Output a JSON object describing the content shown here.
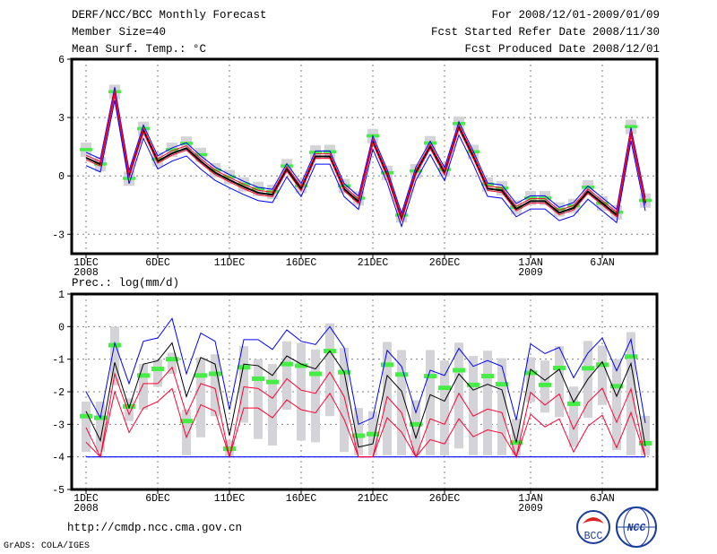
{
  "header": {
    "title": "DERF/NCC/BCC Monthly Forecast",
    "member": "Member Size=40",
    "variable": "Mean Surf. Temp.: °C",
    "period": "For 2008/12/01-2009/01/09",
    "started": "Fcst Started Refer Date 2008/11/30",
    "produced": "Fcst Produced Date 2008/12/01"
  },
  "footer": {
    "url": "http://cmdp.ncc.cma.gov.cn",
    "grads": "GrADS: COLA/IGES",
    "logo_bcc": "BCC",
    "logo_ncc": "NCC"
  },
  "colors": {
    "mean": "#000000",
    "blue": "#0000ff",
    "red": "#ff0030",
    "obs": "#44ee44",
    "bar": "#d4d4d8",
    "grid": "#808080"
  },
  "chart_data": [
    {
      "type": "line",
      "title": "Mean Surf. Temp.: °C",
      "ylim": [
        -4,
        6
      ],
      "yticks": [
        "6",
        "3",
        "0",
        "-3"
      ],
      "ytick_values": [
        6,
        3,
        0,
        -3
      ],
      "xticks": [
        {
          "day": 1,
          "label": "1DEC",
          "sub": "2008"
        },
        {
          "day": 6,
          "label": "6DEC"
        },
        {
          "day": 11,
          "label": "11DEC"
        },
        {
          "day": 16,
          "label": "16DEC"
        },
        {
          "day": 21,
          "label": "21DEC"
        },
        {
          "day": 26,
          "label": "26DEC"
        },
        {
          "day": 32,
          "label": "1JAN",
          "sub": "2009"
        },
        {
          "day": 37,
          "label": "6JAN"
        }
      ],
      "days": 40,
      "mean": [
        0.93,
        0.6,
        4.28,
        0.0,
        2.33,
        0.75,
        1.16,
        1.42,
        0.75,
        0.17,
        -0.21,
        -0.56,
        -0.87,
        -0.97,
        0.35,
        -0.67,
        1.0,
        1.0,
        -0.67,
        -1.32,
        1.77,
        0.05,
        -2.2,
        0.17,
        1.5,
        0.15,
        2.5,
        1.0,
        -0.65,
        -0.75,
        -1.7,
        -1.3,
        -1.3,
        -1.9,
        -1.65,
        -0.8,
        -1.4,
        -2.0,
        2.2,
        -1.4
      ],
      "observed": [
        1.34,
        0.6,
        4.32,
        -0.14,
        2.42,
        0.85,
        1.34,
        1.66,
        1.08,
        0.29,
        -0.06,
        -0.44,
        -0.67,
        -0.82,
        0.5,
        -0.52,
        1.2,
        1.23,
        -0.52,
        -1.16,
        2.05,
        0.15,
        -2.03,
        0.24,
        1.68,
        0.32,
        2.68,
        1.23,
        -0.44,
        -0.64,
        -1.62,
        -1.15,
        -1.15,
        -1.73,
        -1.55,
        -0.59,
        -1.42,
        -1.88,
        2.52,
        -1.27
      ],
      "spread_blue": [
        0.28,
        -0.4
      ],
      "spread_red": [
        0.13,
        -0.1
      ]
    },
    {
      "type": "line",
      "title": "Prec.: log(mm/d)",
      "ylim": [
        -5,
        1
      ],
      "yticks": [
        "1",
        "0",
        "-1",
        "-2",
        "-3",
        "-4",
        "-5"
      ],
      "ytick_values": [
        1,
        0,
        -1,
        -2,
        -3,
        -4,
        -5
      ],
      "xticks": [
        {
          "day": 1,
          "label": "1DEC",
          "sub": "2008"
        },
        {
          "day": 6,
          "label": "6DEC"
        },
        {
          "day": 11,
          "label": "11DEC"
        },
        {
          "day": 16,
          "label": "16DEC"
        },
        {
          "day": 21,
          "label": "21DEC"
        },
        {
          "day": 26,
          "label": "26DEC"
        },
        {
          "day": 32,
          "label": "1JAN",
          "sub": "2009"
        },
        {
          "day": 37,
          "label": "6JAN"
        }
      ],
      "days": 40,
      "floor": -4,
      "upper": [
        -2.0,
        -2.8,
        -0.5,
        -1.75,
        -0.45,
        -0.35,
        0.25,
        -1.45,
        -0.2,
        -0.45,
        -2.55,
        -0.4,
        -0.4,
        -0.7,
        -0.1,
        -0.45,
        -0.55,
        0.0,
        -0.65,
        -3.0,
        -2.8,
        -0.73,
        -1.22,
        -2.64,
        -1.34,
        -1.5,
        -0.67,
        -1.22,
        -1.04,
        -1.22,
        -2.87,
        -0.53,
        -0.83,
        -0.64,
        -1.57,
        -0.81,
        -0.35,
        -1.36,
        -0.39,
        -2.96
      ],
      "mean": [
        -2.6,
        -3.5,
        -1.1,
        -2.5,
        -1.15,
        -1.05,
        -0.5,
        -2.15,
        -0.95,
        -1.15,
        -3.35,
        -1.15,
        -1.2,
        -1.5,
        -0.9,
        -1.15,
        -1.3,
        -0.75,
        -1.4,
        -3.7,
        -3.6,
        -1.5,
        -1.98,
        -3.42,
        -2.09,
        -2.29,
        -1.45,
        -1.95,
        -1.77,
        -1.94,
        -3.56,
        -1.31,
        -1.65,
        -1.31,
        -2.32,
        -1.61,
        -1.08,
        -2.14,
        -1.13,
        -3.67
      ],
      "red_upper": [
        -3.1,
        -4,
        -1.45,
        -2.7,
        -1.75,
        -1.75,
        -1.25,
        -2.7,
        -1.75,
        -1.9,
        -4,
        -1.85,
        -1.9,
        -2.2,
        -1.6,
        -1.95,
        -2.05,
        -1.4,
        -2.15,
        -4,
        -4,
        -2.15,
        -2.64,
        -4,
        -2.83,
        -3.0,
        -2.05,
        -2.75,
        -2.53,
        -2.64,
        -4,
        -2.02,
        -2.41,
        -2.07,
        -3.15,
        -2.32,
        -1.89,
        -2.94,
        -1.91,
        -4
      ],
      "red_lower": [
        -3.55,
        -4,
        -2.0,
        -3.25,
        -2.5,
        -2.3,
        -1.9,
        -3.4,
        -2.4,
        -2.6,
        -4,
        -2.5,
        -2.5,
        -2.8,
        -2.25,
        -2.55,
        -2.65,
        -2.05,
        -2.85,
        -4,
        -4,
        -2.8,
        -3.24,
        -4,
        -3.47,
        -3.6,
        -2.83,
        -3.38,
        -3.17,
        -3.27,
        -4,
        -2.69,
        -3.08,
        -2.83,
        -3.85,
        -3.06,
        -2.72,
        -3.72,
        -2.64,
        -4
      ],
      "observed": [
        -2.75,
        -2.8,
        -0.57,
        -2.45,
        -1.5,
        -1.3,
        -1.0,
        -2.9,
        -1.5,
        -1.45,
        -3.75,
        -1.25,
        -1.6,
        -1.7,
        -1.15,
        -1.2,
        -1.45,
        -0.75,
        -1.4,
        -3.35,
        -3.3,
        -1.17,
        -1.47,
        -3.0,
        -1.52,
        -1.88,
        -1.34,
        -1.79,
        -1.52,
        -1.77,
        -3.56,
        -1.42,
        -1.79,
        -1.27,
        -2.37,
        -1.28,
        -1.17,
        -1.83,
        -0.92,
        -3.58
      ],
      "bar_max": [
        -2.3,
        -2.3,
        0.0,
        -2.2,
        -1.15,
        -1.0,
        -0.8,
        -2.55,
        -0.95,
        -0.85,
        -3.5,
        -0.6,
        -1.0,
        -1.15,
        -0.45,
        -0.5,
        -0.7,
        0.1,
        -0.65,
        -2.5,
        -2.6,
        -0.47,
        -0.72,
        -2.26,
        -0.72,
        -1.04,
        -0.49,
        -0.9,
        -0.74,
        -0.97,
        -2.83,
        -0.94,
        -1.04,
        -0.6,
        -1.84,
        -0.44,
        -0.58,
        -1.0,
        -0.17,
        -2.74
      ],
      "bar_min": [
        -3.85,
        -3.85,
        -1.8,
        -2.9,
        -2.55,
        -1.85,
        -1.45,
        -3.95,
        -3.4,
        -2.75,
        -4.0,
        -2.95,
        -3.45,
        -3.65,
        -2.55,
        -3.5,
        -3.55,
        -2.75,
        -3.85,
        -3.95,
        -3.95,
        -3.95,
        -3.95,
        -3.95,
        -3.95,
        -3.95,
        -3.74,
        -3.95,
        -3.95,
        -3.95,
        -3.95,
        -2.32,
        -2.64,
        -2.78,
        -3.7,
        -2.8,
        -2.41,
        -3.79,
        -3.95,
        -3.95
      ]
    }
  ]
}
